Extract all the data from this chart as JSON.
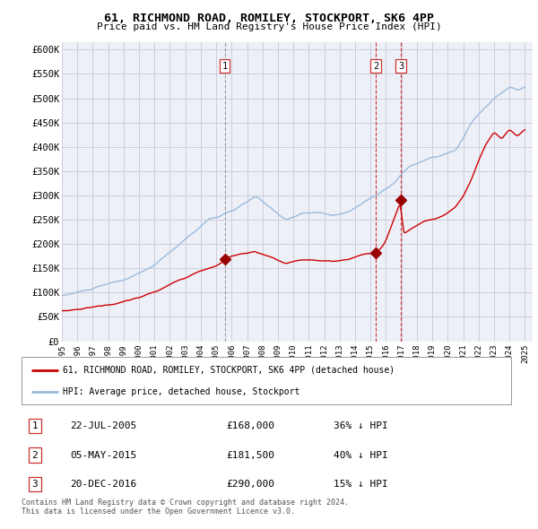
{
  "title": "61, RICHMOND ROAD, ROMILEY, STOCKPORT, SK6 4PP",
  "subtitle": "Price paid vs. HM Land Registry's House Price Index (HPI)",
  "ylabel_ticks": [
    "£0",
    "£50K",
    "£100K",
    "£150K",
    "£200K",
    "£250K",
    "£300K",
    "£350K",
    "£400K",
    "£450K",
    "£500K",
    "£550K",
    "£600K"
  ],
  "ytick_values": [
    0,
    50000,
    100000,
    150000,
    200000,
    250000,
    300000,
    350000,
    400000,
    450000,
    500000,
    550000,
    600000
  ],
  "ylim": [
    0,
    615000
  ],
  "xlim_start": 1995.0,
  "xlim_end": 2025.5,
  "red_color": "#cc0000",
  "blue_color": "#99bbdd",
  "sale_marker_color": "#990000",
  "vline_color_1": "#888888",
  "vline_color_23": "#cc3333",
  "grid_color": "#ccccdd",
  "bg_color": "#eef0f8",
  "sales": [
    {
      "num": 1,
      "year": 2005.55,
      "price": 168000,
      "vline_style": "grey"
    },
    {
      "num": 2,
      "year": 2015.34,
      "price": 181500,
      "vline_style": "red"
    },
    {
      "num": 3,
      "year": 2016.97,
      "price": 290000,
      "vline_style": "red"
    }
  ],
  "table_rows": [
    {
      "num": "1",
      "date": "22-JUL-2005",
      "price": "£168,000",
      "hpi": "36% ↓ HPI"
    },
    {
      "num": "2",
      "date": "05-MAY-2015",
      "price": "£181,500",
      "hpi": "40% ↓ HPI"
    },
    {
      "num": "3",
      "date": "20-DEC-2016",
      "price": "£290,000",
      "hpi": "15% ↓ HPI"
    }
  ],
  "legend_red_label": "61, RICHMOND ROAD, ROMILEY, STOCKPORT, SK6 4PP (detached house)",
  "legend_blue_label": "HPI: Average price, detached house, Stockport",
  "footer": "Contains HM Land Registry data © Crown copyright and database right 2024.\nThis data is licensed under the Open Government Licence v3.0."
}
